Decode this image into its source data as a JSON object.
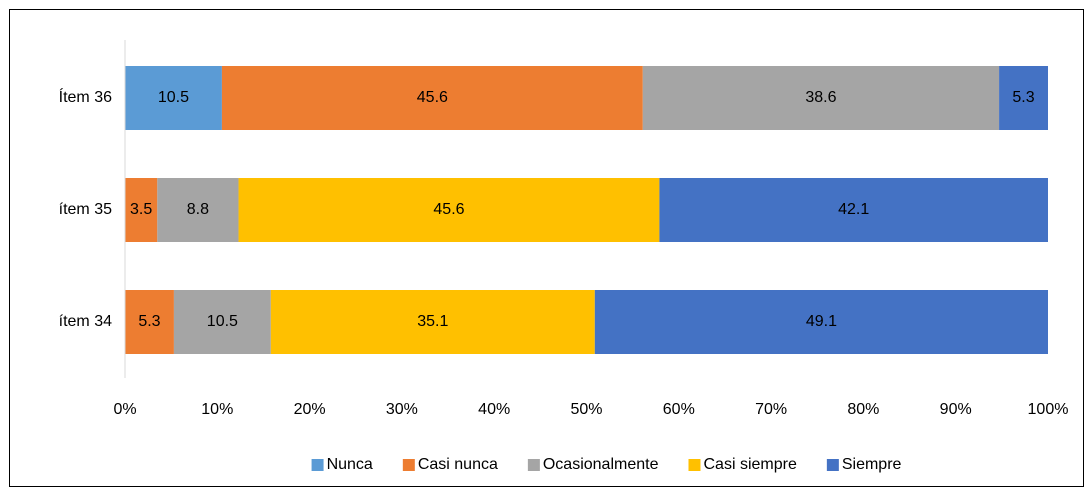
{
  "chart_data": {
    "type": "stacked-bar-horizontal",
    "categories": [
      "Ítem 36",
      "ítem 35",
      "ítem 34"
    ],
    "series": [
      {
        "name": "Nunca",
        "color": "#5b9bd5",
        "values": [
          10.5,
          null,
          null
        ]
      },
      {
        "name": "Casi nunca",
        "color": "#ed7d31",
        "values": [
          45.6,
          3.5,
          5.3
        ]
      },
      {
        "name": "Ocasionalmente",
        "color": "#a5a5a5",
        "values": [
          38.6,
          8.8,
          10.5
        ]
      },
      {
        "name": "Casi siempre",
        "color": "#ffc000",
        "values": [
          null,
          45.6,
          35.1
        ]
      },
      {
        "name": "Siempre",
        "color": "#4472c4",
        "values": [
          5.3,
          42.1,
          49.1
        ]
      }
    ],
    "xlim": [
      0,
      100
    ],
    "xticks": [
      {
        "value": 0,
        "label": "0%"
      },
      {
        "value": 10,
        "label": "10%"
      },
      {
        "value": 20,
        "label": "20%"
      },
      {
        "value": 30,
        "label": "30%"
      },
      {
        "value": 40,
        "label": "40%"
      },
      {
        "value": 50,
        "label": "50%"
      },
      {
        "value": 60,
        "label": "60%"
      },
      {
        "value": 70,
        "label": "70%"
      },
      {
        "value": 80,
        "label": "80%"
      },
      {
        "value": 90,
        "label": "90%"
      },
      {
        "value": 100,
        "label": "100%"
      }
    ],
    "legend": "bottom"
  }
}
